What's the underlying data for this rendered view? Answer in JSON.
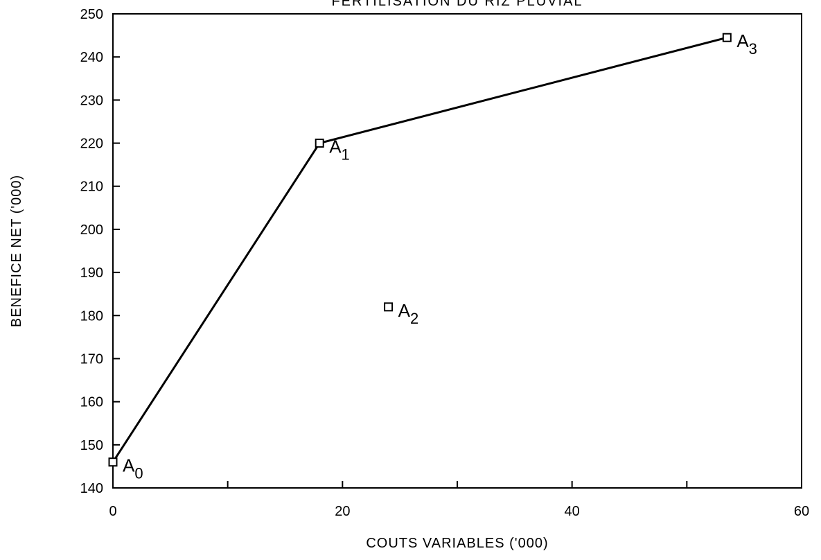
{
  "chart_data": {
    "type": "scatter",
    "title": "FERTILISATION DU RIZ PLUVIAL",
    "xlabel": "COUTS VARIABLES ('000)",
    "ylabel": "BENEFICE NET ('000)",
    "xlim": [
      0,
      60
    ],
    "ylim": [
      140,
      250
    ],
    "x_ticks": [
      0,
      20,
      40,
      60
    ],
    "x_minor_ticks": [
      10,
      30,
      50
    ],
    "y_ticks": [
      140,
      150,
      160,
      170,
      180,
      190,
      200,
      210,
      220,
      230,
      240,
      250
    ],
    "grid": false,
    "points": [
      {
        "label": "A",
        "sub": "0",
        "x": 0,
        "y": 146
      },
      {
        "label": "A",
        "sub": "1",
        "x": 18,
        "y": 220
      },
      {
        "label": "A",
        "sub": "2",
        "x": 24,
        "y": 182
      },
      {
        "label": "A",
        "sub": "3",
        "x": 53.5,
        "y": 244.5
      }
    ],
    "frontier_order": [
      0,
      1,
      3
    ],
    "colors": {
      "ink": "#000000",
      "background": "#ffffff"
    }
  }
}
